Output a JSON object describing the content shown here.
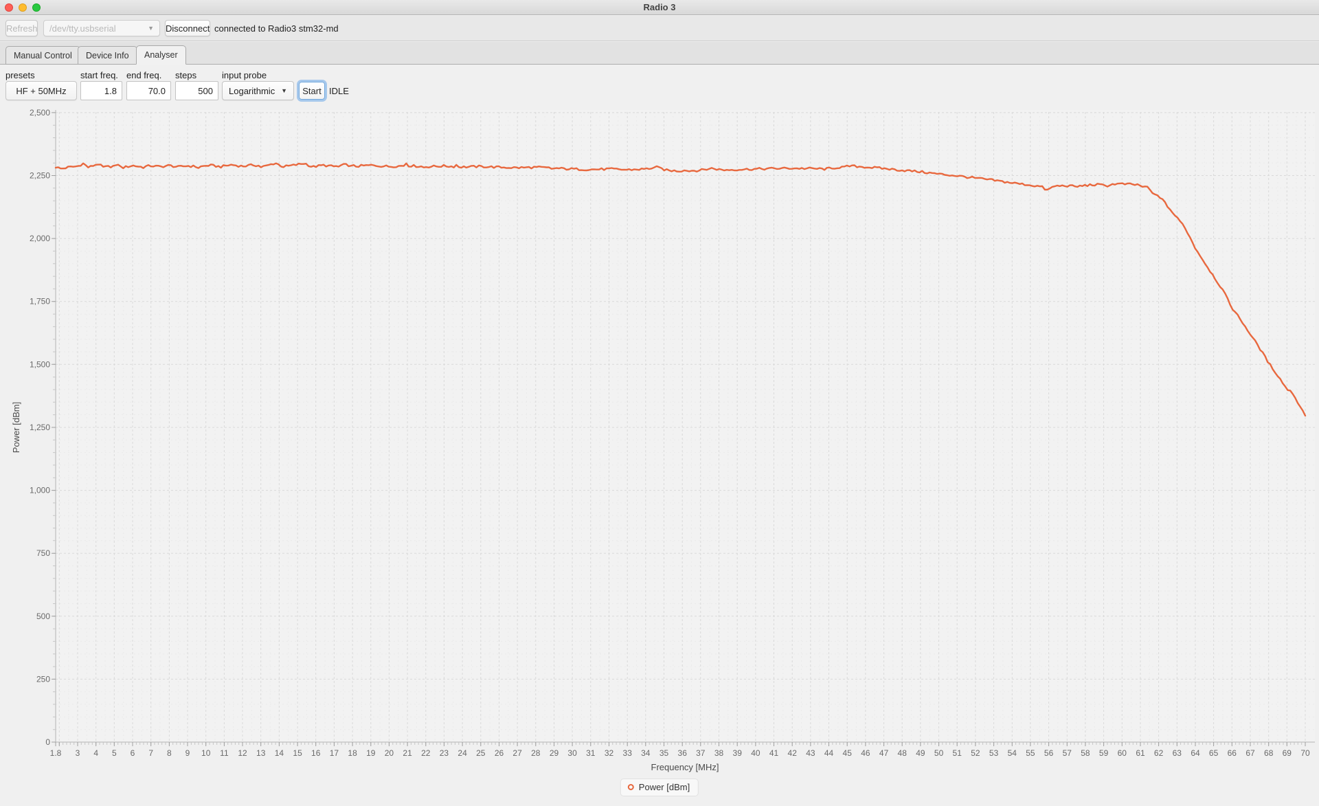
{
  "window": {
    "title": "Radio 3"
  },
  "toolbar": {
    "refresh_label": "Refresh",
    "port_value": "/dev/tty.usbserial",
    "disconnect_label": "Disconnect",
    "status": "connected to Radio3 stm32-md"
  },
  "tabs": [
    {
      "label": "Manual Control",
      "selected": false
    },
    {
      "label": "Device Info",
      "selected": false
    },
    {
      "label": "Analyser",
      "selected": true
    }
  ],
  "controls": {
    "presets_label": "presets",
    "presets_value": "HF + 50MHz",
    "start_freq_label": "start freq.",
    "start_freq_value": "1.8",
    "end_freq_label": "end freq.",
    "end_freq_value": "70.0",
    "steps_label": "steps",
    "steps_value": "500",
    "input_probe_label": "input probe",
    "input_probe_value": "Logarithmic",
    "start_button": "Start",
    "state": "IDLE"
  },
  "colors": {
    "line": "#e8683e",
    "plot_bg": "#f2f2f2",
    "grid_major": "#d9d9d9",
    "grid_minor": "#eaeaea",
    "axis": "#b3b3b3",
    "tick_major": "#9f9f9f",
    "tick_minor": "#c6c6c6",
    "tick_label": "#696969",
    "axis_title": "#4a4a4a",
    "traffic_red": "#ff5f57",
    "traffic_yellow": "#febc2e",
    "traffic_green": "#28c840",
    "focus_ring": "#6aa8e9"
  },
  "chart_data": {
    "type": "line",
    "title": "",
    "xlabel": "Frequency [MHz]",
    "ylabel": "Power [dBm]",
    "xlim": [
      1.8,
      70
    ],
    "ylim": [
      0,
      2500
    ],
    "grid": true,
    "legend_position": "bottom",
    "x_tick_labels": [
      "1.8",
      "3",
      "4",
      "5",
      "6",
      "7",
      "8",
      "9",
      "10",
      "11",
      "12",
      "13",
      "14",
      "15",
      "16",
      "17",
      "18",
      "19",
      "20",
      "21",
      "22",
      "23",
      "24",
      "25",
      "26",
      "27",
      "28",
      "29",
      "30",
      "31",
      "32",
      "33",
      "34",
      "35",
      "36",
      "37",
      "38",
      "39",
      "40",
      "41",
      "42",
      "43",
      "44",
      "45",
      "46",
      "47",
      "48",
      "49",
      "50",
      "51",
      "52",
      "53",
      "54",
      "55",
      "56",
      "57",
      "58",
      "59",
      "60",
      "61",
      "62",
      "63",
      "64",
      "65",
      "66",
      "67",
      "68",
      "69",
      "70"
    ],
    "y_tick_values": [
      0,
      250,
      500,
      750,
      1000,
      1250,
      1500,
      1750,
      2000,
      2250,
      2500
    ],
    "y_tick_labels": [
      "0",
      "250",
      "500",
      "750",
      "1,000",
      "1,250",
      "1,500",
      "1,750",
      "2,000",
      "2,250",
      "2,500"
    ],
    "x_minor_step": 0.2,
    "y_minor_step": 50,
    "sample_count": 500,
    "noise_amplitude": 4.5,
    "series": [
      {
        "name": "Power [dBm]",
        "color": "#e8683e",
        "points": [
          [
            1.8,
            2284
          ],
          [
            2.1,
            2277
          ],
          [
            2.5,
            2283
          ],
          [
            3.0,
            2287
          ],
          [
            3.3,
            2298
          ],
          [
            3.6,
            2282
          ],
          [
            4.1,
            2297
          ],
          [
            4.4,
            2283
          ],
          [
            5.0,
            2288
          ],
          [
            5.5,
            2282
          ],
          [
            6.0,
            2290
          ],
          [
            6.5,
            2284
          ],
          [
            7.0,
            2289
          ],
          [
            7.5,
            2285
          ],
          [
            8.0,
            2290
          ],
          [
            8.5,
            2284
          ],
          [
            9.0,
            2289
          ],
          [
            9.6,
            2284
          ],
          [
            10.2,
            2291
          ],
          [
            10.8,
            2285
          ],
          [
            11.4,
            2293
          ],
          [
            12.0,
            2287
          ],
          [
            12.6,
            2292
          ],
          [
            13.2,
            2286
          ],
          [
            13.8,
            2300
          ],
          [
            14.2,
            2285
          ],
          [
            14.8,
            2291
          ],
          [
            15.4,
            2299
          ],
          [
            15.8,
            2284
          ],
          [
            16.4,
            2291
          ],
          [
            17.0,
            2286
          ],
          [
            17.6,
            2293
          ],
          [
            18.2,
            2287
          ],
          [
            19.0,
            2291
          ],
          [
            20.0,
            2286
          ],
          [
            21.0,
            2290
          ],
          [
            22.0,
            2285
          ],
          [
            23.0,
            2288
          ],
          [
            24.0,
            2284
          ],
          [
            25.0,
            2286
          ],
          [
            26.0,
            2283
          ],
          [
            27.0,
            2281
          ],
          [
            28.0,
            2283
          ],
          [
            29.0,
            2279
          ],
          [
            30.0,
            2276
          ],
          [
            31.0,
            2274
          ],
          [
            32.0,
            2276
          ],
          [
            33.0,
            2273
          ],
          [
            34.0,
            2276
          ],
          [
            34.6,
            2283
          ],
          [
            35.2,
            2270
          ],
          [
            36.0,
            2268
          ],
          [
            37.0,
            2271
          ],
          [
            37.6,
            2279
          ],
          [
            38.2,
            2272
          ],
          [
            39.0,
            2274
          ],
          [
            40.0,
            2276
          ],
          [
            41.0,
            2278
          ],
          [
            42.0,
            2279
          ],
          [
            43.0,
            2278
          ],
          [
            43.8,
            2276
          ],
          [
            44.6,
            2283
          ],
          [
            45.2,
            2288
          ],
          [
            46.0,
            2284
          ],
          [
            47.0,
            2278
          ],
          [
            48.0,
            2271
          ],
          [
            49.0,
            2265
          ],
          [
            50.0,
            2256
          ],
          [
            51.0,
            2249
          ],
          [
            52.0,
            2240
          ],
          [
            53.0,
            2231
          ],
          [
            54.0,
            2221
          ],
          [
            55.0,
            2212
          ],
          [
            55.6,
            2206
          ],
          [
            55.9,
            2191
          ],
          [
            56.3,
            2208
          ],
          [
            57.0,
            2210
          ],
          [
            57.5,
            2206
          ],
          [
            58.0,
            2211
          ],
          [
            58.6,
            2214
          ],
          [
            59.2,
            2210
          ],
          [
            59.6,
            2217
          ],
          [
            60.2,
            2216
          ],
          [
            60.9,
            2213
          ],
          [
            61.2,
            2204
          ],
          [
            61.5,
            2196
          ],
          [
            61.7,
            2174
          ],
          [
            62.0,
            2171
          ],
          [
            62.4,
            2136
          ],
          [
            62.9,
            2090
          ],
          [
            63.4,
            2049
          ],
          [
            64.0,
            1962
          ],
          [
            64.5,
            1905
          ],
          [
            65.0,
            1850
          ],
          [
            65.5,
            1795
          ],
          [
            66.0,
            1725
          ],
          [
            66.5,
            1675
          ],
          [
            67.0,
            1620
          ],
          [
            67.5,
            1566
          ],
          [
            68.0,
            1506
          ],
          [
            68.5,
            1456
          ],
          [
            69.0,
            1402
          ],
          [
            69.3,
            1388
          ],
          [
            69.6,
            1348
          ],
          [
            69.85,
            1316
          ],
          [
            70.0,
            1300
          ]
        ]
      }
    ]
  }
}
